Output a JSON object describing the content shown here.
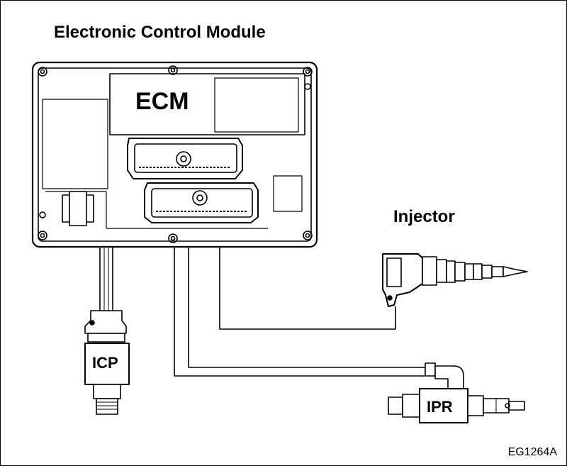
{
  "diagram": {
    "title": "Electronic Control Module",
    "ecm_label": "ECM",
    "injector_label": "Injector",
    "icp_label": "ICP",
    "ipr_label": "IPR",
    "figure_id": "EG1264A"
  }
}
